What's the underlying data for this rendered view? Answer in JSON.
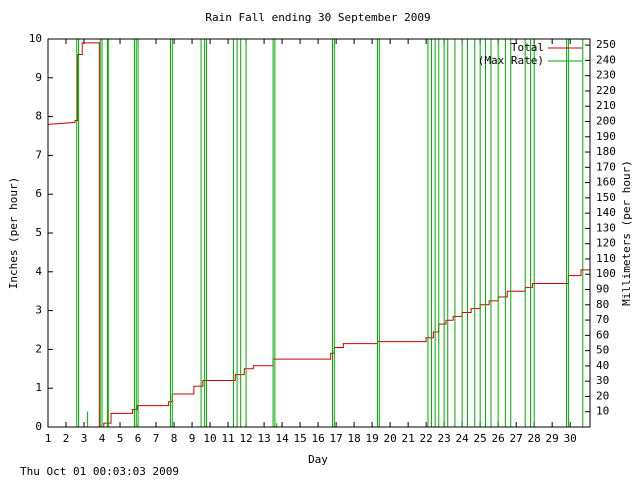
{
  "chart_data": {
    "type": "line",
    "title": "Rain Fall ending 30 September 2009",
    "xlabel": "Day",
    "ylabel": "Inches (per hour)",
    "y2label": "Millimeters (per hour)",
    "footer": "Thu Oct 01 00:03:03 2009",
    "xlim": [
      1,
      31.1
    ],
    "xticks": [
      1,
      2,
      3,
      4,
      5,
      6,
      7,
      8,
      9,
      10,
      11,
      12,
      13,
      14,
      15,
      16,
      17,
      18,
      19,
      20,
      21,
      22,
      23,
      24,
      25,
      26,
      27,
      28,
      29,
      30
    ],
    "ylim": [
      0,
      10
    ],
    "yticks": [
      0,
      1,
      2,
      3,
      4,
      5,
      6,
      7,
      8,
      9,
      10
    ],
    "y2lim": [
      0,
      254
    ],
    "y2ticks": [
      10,
      20,
      30,
      40,
      50,
      60,
      70,
      80,
      90,
      100,
      110,
      120,
      130,
      140,
      150,
      160,
      170,
      180,
      190,
      200,
      210,
      220,
      230,
      240,
      250
    ],
    "legend": "top-right",
    "series": [
      {
        "name": "Total",
        "color": "#cc0000",
        "style": "line",
        "x": [
          1,
          2.5,
          2.5,
          2.65,
          2.65,
          2.9,
          2.9,
          3.85,
          3.85,
          4.1,
          4.1,
          4.5,
          4.5,
          5.7,
          5.7,
          5.95,
          5.95,
          7.7,
          7.7,
          7.9,
          7.9,
          9.1,
          9.1,
          9.6,
          9.6,
          11.4,
          11.4,
          11.9,
          11.9,
          12.4,
          12.4,
          13.5,
          13.5,
          16.7,
          16.7,
          16.9,
          16.9,
          17.4,
          17.4,
          19.3,
          19.3,
          22,
          22,
          22.4,
          22.4,
          22.7,
          22.7,
          23.1,
          23.1,
          23.5,
          23.5,
          24,
          24,
          24.5,
          24.5,
          25,
          25,
          25.5,
          25.5,
          26,
          26,
          26.5,
          26.5,
          27.5,
          27.5,
          27.9,
          27.9,
          29.9,
          29.9,
          30.6,
          30.6,
          31.1
        ],
        "values": [
          7.8,
          7.85,
          7.9,
          7.9,
          9.6,
          9.6,
          9.9,
          9.9,
          0,
          0,
          0.1,
          0.1,
          0.35,
          0.35,
          0.45,
          0.45,
          0.55,
          0.55,
          0.65,
          0.65,
          0.85,
          0.85,
          1.05,
          1.05,
          1.2,
          1.2,
          1.35,
          1.35,
          1.5,
          1.5,
          1.58,
          1.58,
          1.75,
          1.75,
          1.9,
          1.9,
          2.05,
          2.05,
          2.15,
          2.15,
          2.2,
          2.2,
          2.3,
          2.3,
          2.45,
          2.45,
          2.65,
          2.65,
          2.75,
          2.75,
          2.85,
          2.85,
          2.95,
          2.95,
          3.05,
          3.05,
          3.15,
          3.15,
          3.25,
          3.25,
          3.35,
          3.35,
          3.5,
          3.5,
          3.6,
          3.6,
          3.7,
          3.7,
          3.9,
          3.9,
          4.05,
          4.05
        ]
      },
      {
        "name": "(Max Rate)",
        "color": "#00aa00",
        "style": "impulses",
        "x": [
          2.6,
          2.7,
          3.2,
          3.9,
          4.0,
          4.3,
          4.35,
          5.8,
          5.9,
          6.0,
          7.8,
          7.9,
          9.5,
          9.7,
          9.8,
          11.3,
          11.5,
          11.7,
          12.0,
          13.5,
          13.6,
          13.7,
          16.8,
          16.9,
          19.3,
          19.4,
          22.1,
          22.3,
          22.5,
          22.7,
          23.0,
          23.2,
          23.6,
          24.0,
          24.3,
          24.7,
          25.0,
          25.3,
          25.6,
          26.0,
          26.4,
          26.7,
          27.5,
          27.8,
          28.0,
          29.8,
          29.9,
          30.7
        ],
        "values": [
          10,
          10,
          0.4,
          10,
          10,
          10,
          10,
          10,
          10,
          10,
          10,
          10,
          10,
          10,
          10,
          10,
          10,
          10,
          10,
          10,
          10,
          0.1,
          10,
          10,
          10,
          10,
          10,
          10,
          10,
          10,
          10,
          10,
          10,
          10,
          10,
          10,
          10,
          10,
          10,
          10,
          10,
          10,
          10,
          10,
          10,
          10,
          10,
          10
        ]
      }
    ]
  }
}
